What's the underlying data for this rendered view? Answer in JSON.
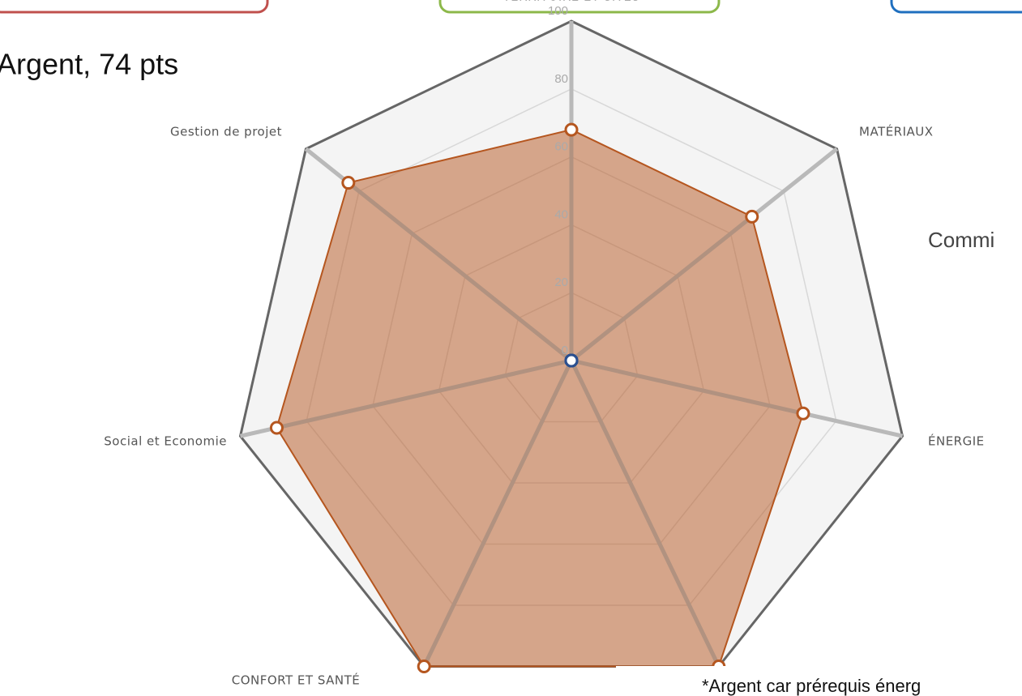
{
  "chart_data": {
    "type": "radar",
    "categories": [
      "TERRITOIRE ET SITES",
      "MATÉRIAUX",
      "ÉNERGIE",
      null,
      "CONFORT ET SANTÉ",
      "Social et Economie",
      "Gestion de projet"
    ],
    "series": [
      {
        "color": "#b5561f",
        "values": [
          68,
          68,
          70,
          100,
          100,
          89,
          84
        ]
      },
      {
        "color": "#2a4f8f",
        "values": [
          0,
          0,
          0,
          0,
          0,
          0,
          0
        ]
      }
    ],
    "ylim": [
      0,
      100
    ],
    "yticks": [
      0,
      20,
      40,
      60,
      80,
      100
    ],
    "grid": true,
    "annotations": [
      "Argent, 74 pts",
      "Commi",
      "*Argent car prérequis énerg"
    ]
  }
}
